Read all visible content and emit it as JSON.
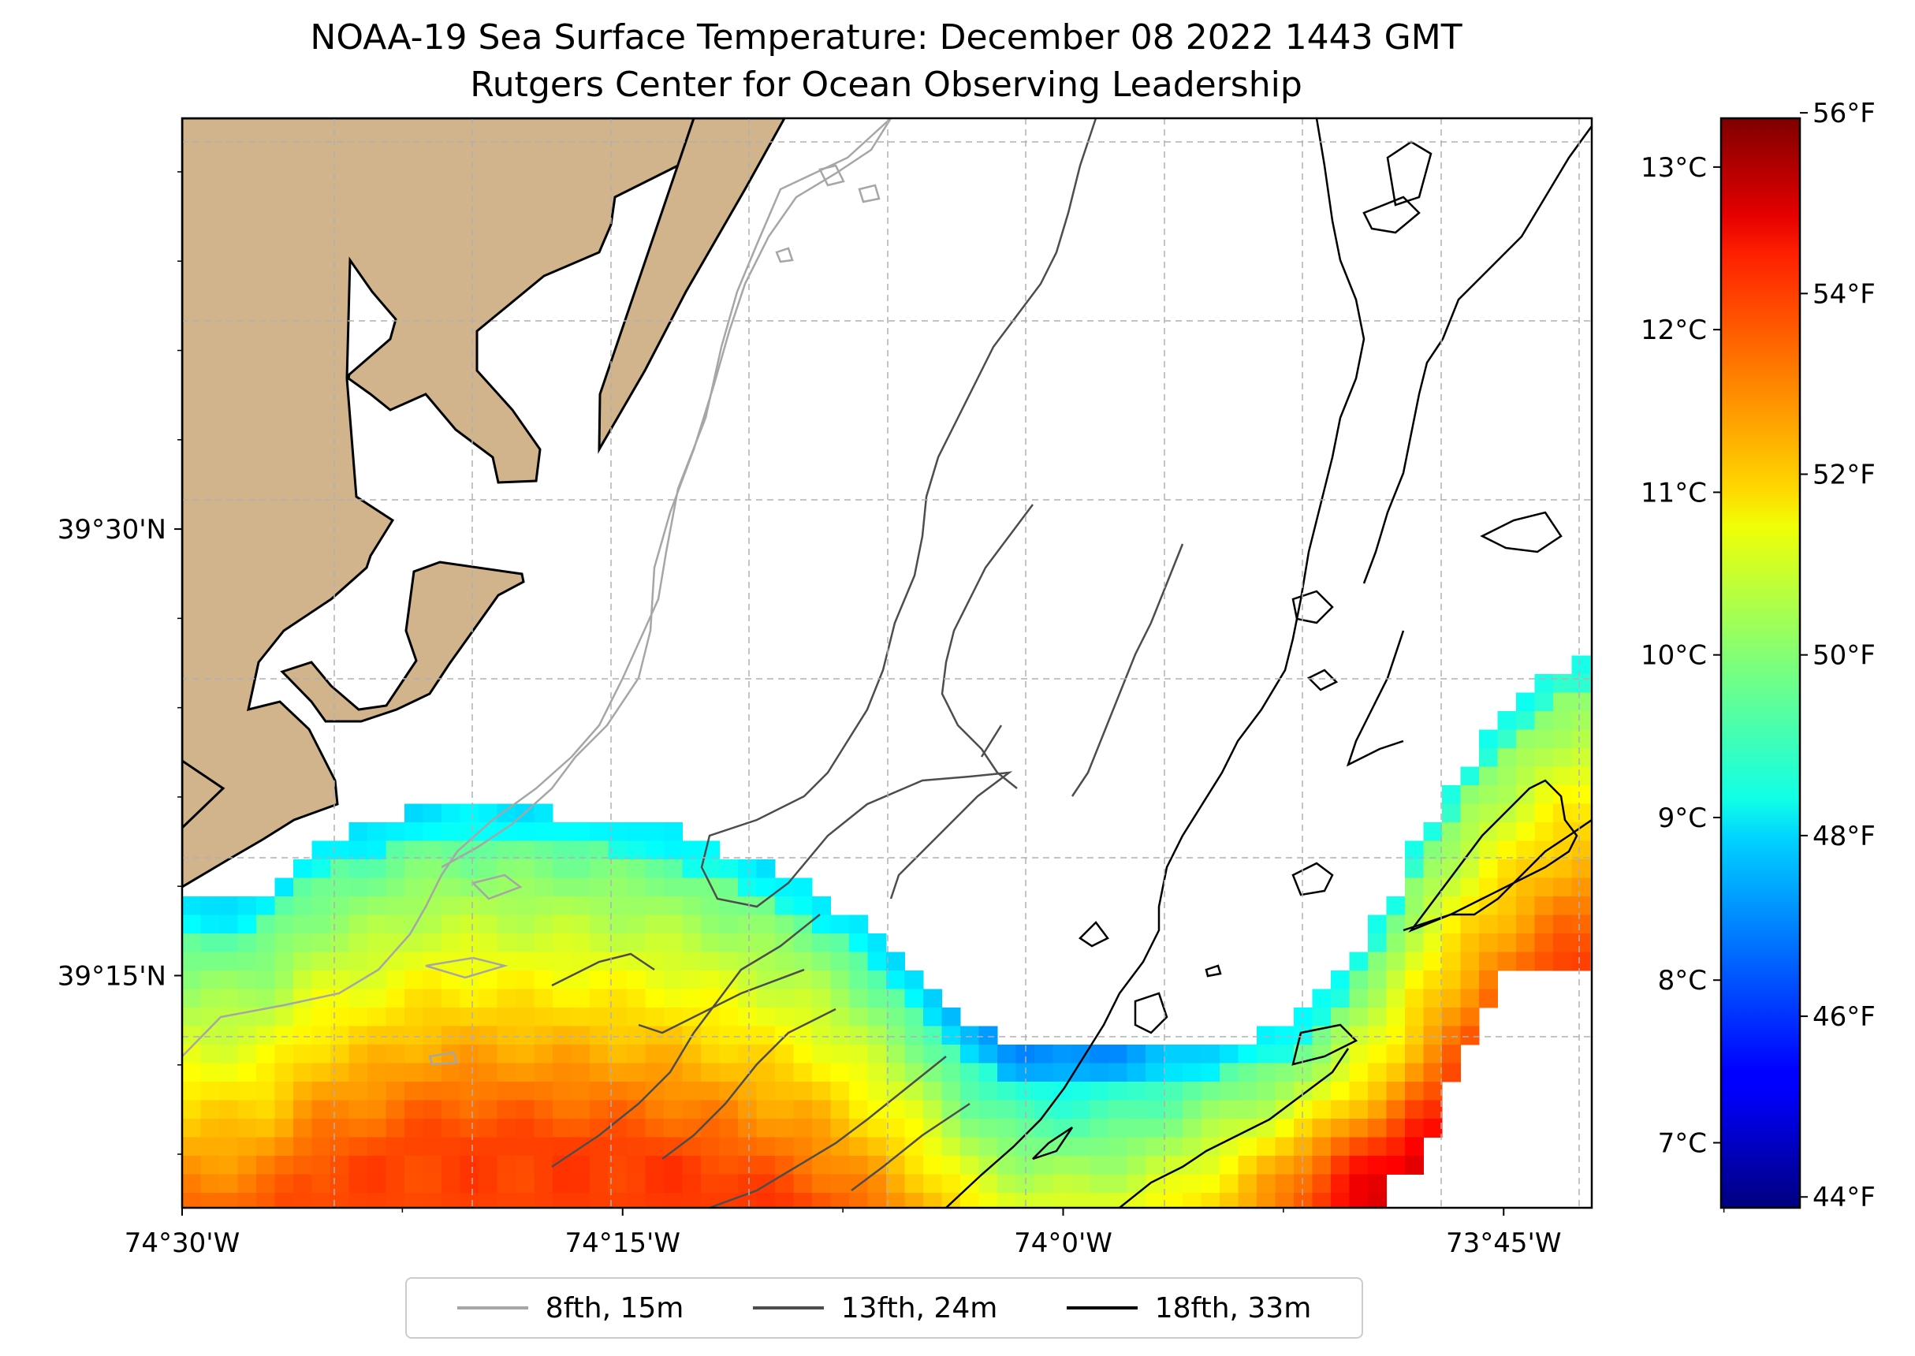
{
  "title": {
    "line1": "NOAA-19 Sea Surface Temperature: December 08 2022 1443 GMT",
    "line2": "Rutgers Center for Ocean Observing Leadership"
  },
  "map": {
    "lon_range": [
      -74.5,
      -73.7
    ],
    "lat_range": [
      39.12,
      39.73
    ],
    "x_ticks": [
      {
        "lon": -74.5,
        "label": "74°30'W"
      },
      {
        "lon": -74.25,
        "label": "74°15'W"
      },
      {
        "lon": -74.0,
        "label": "74°0'W"
      },
      {
        "lon": -73.75,
        "label": "73°45'W"
      }
    ],
    "y_ticks": [
      {
        "lat": 39.5,
        "label": "39°30'N"
      },
      {
        "lat": 39.25,
        "label": "39°15'N"
      }
    ],
    "land_color": "#d2b48c",
    "grid": true
  },
  "colorbar": {
    "colormap": "jet",
    "celsius_range": [
      6.6,
      13.3
    ],
    "celsius_ticks": [
      {
        "value": 7,
        "label": "7°C"
      },
      {
        "value": 8,
        "label": "8°C"
      },
      {
        "value": 9,
        "label": "9°C"
      },
      {
        "value": 10,
        "label": "10°C"
      },
      {
        "value": 11,
        "label": "11°C"
      },
      {
        "value": 12,
        "label": "12°C"
      },
      {
        "value": 13,
        "label": "13°C"
      }
    ],
    "fahrenheit_ticks": [
      {
        "value": 44,
        "label": "44°F"
      },
      {
        "value": 46,
        "label": "46°F"
      },
      {
        "value": 48,
        "label": "48°F"
      },
      {
        "value": 50,
        "label": "50°F"
      },
      {
        "value": 52,
        "label": "52°F"
      },
      {
        "value": 54,
        "label": "54°F"
      },
      {
        "value": 56,
        "label": "56°F"
      }
    ]
  },
  "legend": [
    {
      "label": "8fth, 15m",
      "color": "#a6a6a6"
    },
    {
      "label": "13fth, 24m",
      "color": "#4d4d4d"
    },
    {
      "label": "18fth, 33m",
      "color": "#000000"
    }
  ]
}
